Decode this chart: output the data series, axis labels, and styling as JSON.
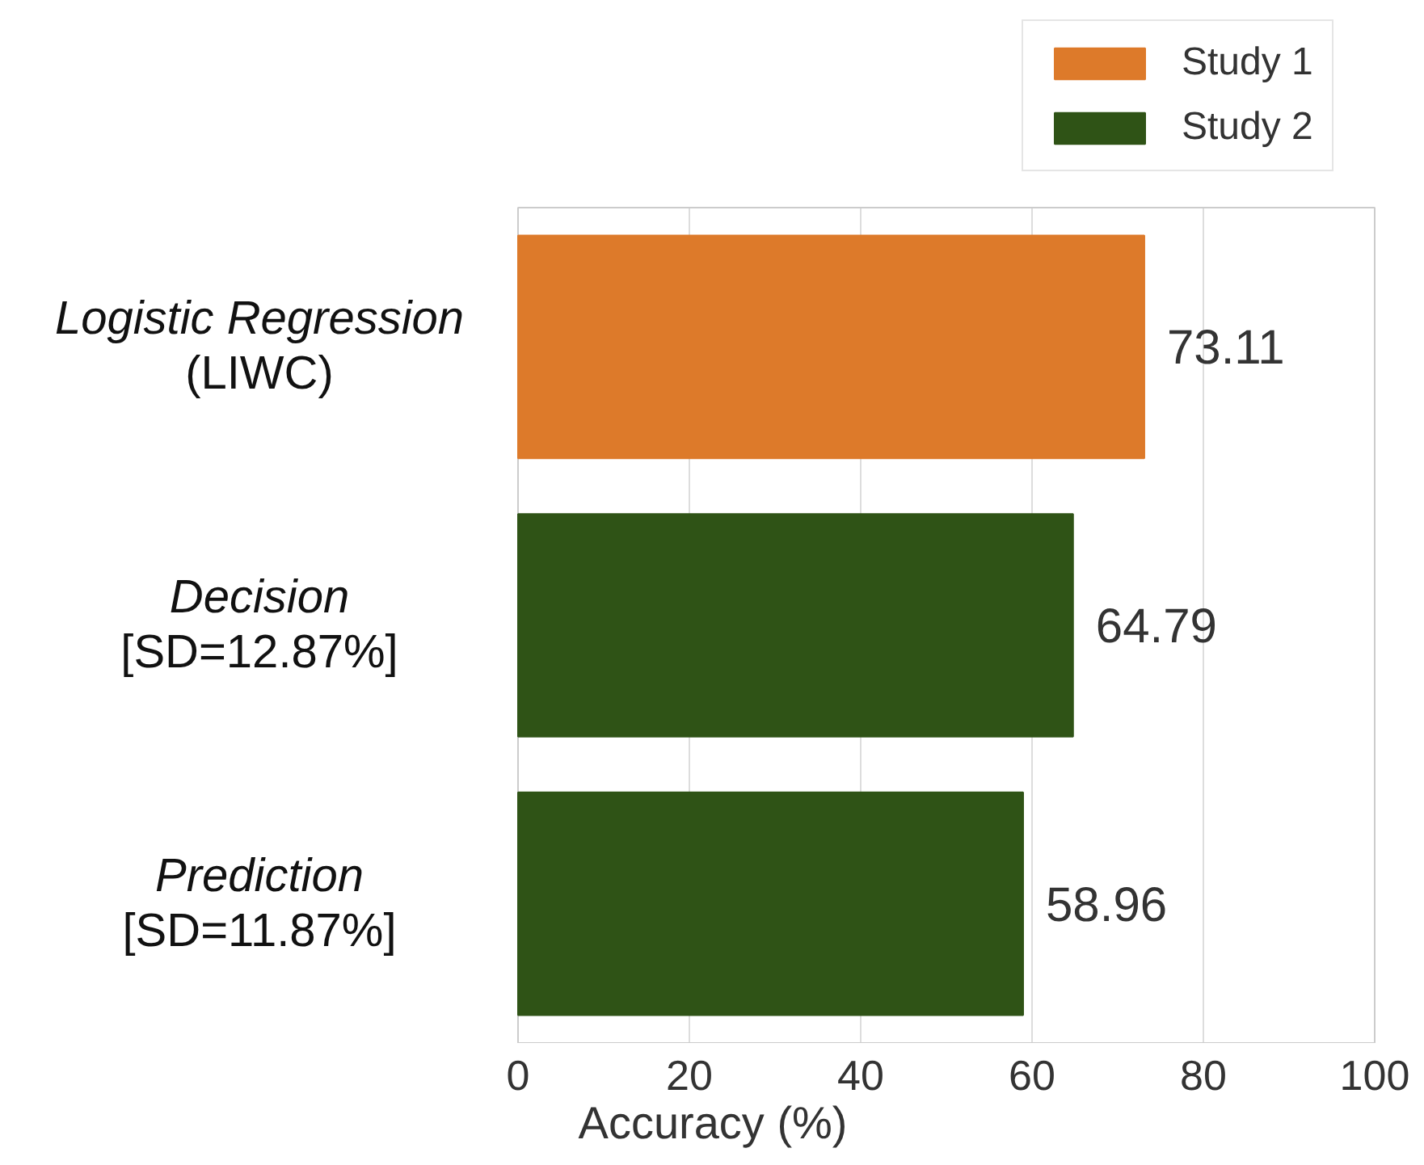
{
  "chart_data": {
    "type": "bar",
    "orientation": "horizontal",
    "xlabel": "Accuracy (%)",
    "categories": [
      "Logistic Regression\n(LIWC)",
      "Decision\n[SD=12.87%]",
      "Prediction\n[SD=11.87%]"
    ],
    "series": [
      {
        "name": "Study 1",
        "color": "#dd7a2a",
        "values": [
          73.11,
          null,
          null
        ]
      },
      {
        "name": "Study 2",
        "color": "#2f5316",
        "values": [
          null,
          64.79,
          58.96
        ]
      }
    ],
    "xlim": [
      0,
      100
    ],
    "xticks": [
      0,
      20,
      40,
      60,
      80,
      100
    ],
    "grid": "x",
    "legend": "top right",
    "data_labels": true
  }
}
